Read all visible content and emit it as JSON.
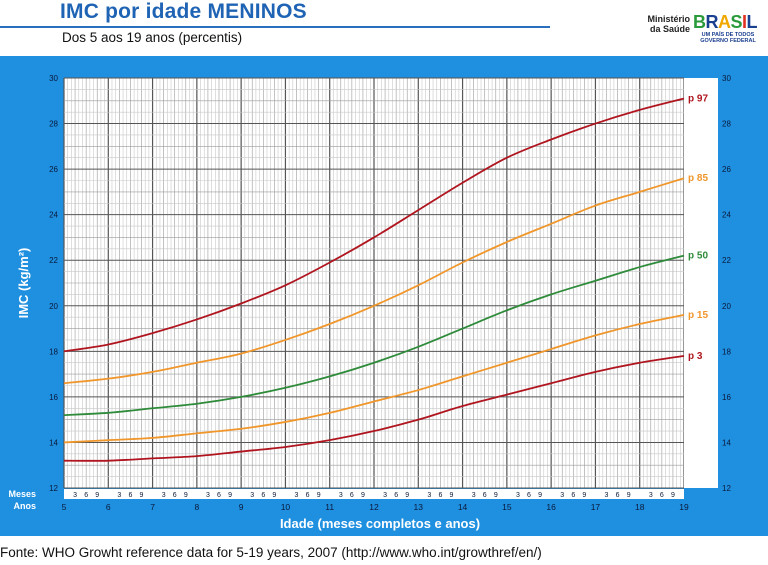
{
  "header": {
    "title": "IMC por idade MENINOS",
    "subtitle": "Dos 5 aos 19 anos (percentis)",
    "ministry_line1": "Ministério",
    "ministry_line2": "da Saúde",
    "logo_word": "BRASIL",
    "logo_tagline": "UM PAÍS DE TODOS",
    "logo_gov": "GOVERNO FEDERAL"
  },
  "footer": {
    "source": "Fonte: WHO Growht reference data for 5-19 years, 2007 (http://www.who.int/growthref/en/)"
  },
  "colors": {
    "panel": "#1f8fe0",
    "title": "#1f64b4",
    "p97": "#b0151f",
    "p85": "#f0962a",
    "p50": "#2e8b3a",
    "p15": "#f0962a",
    "p3": "#b0151f"
  },
  "chart_data": {
    "type": "line",
    "xlabel": "Idade (meses completos e anos)",
    "ylabel": "IMC (kg/m²)",
    "xlim": [
      5,
      19
    ],
    "ylim": [
      12,
      30
    ],
    "x_ticks": [
      "5",
      "6",
      "7",
      "8",
      "9",
      "10",
      "11",
      "12",
      "13",
      "14",
      "15",
      "16",
      "17",
      "18",
      "19"
    ],
    "y_ticks": [
      "12",
      "14",
      "16",
      "18",
      "20",
      "22",
      "24",
      "26",
      "28",
      "30"
    ],
    "month_ticks": [
      "3",
      "6",
      "9"
    ],
    "row_label_months": "Meses",
    "row_label_years": "Anos",
    "grid": true,
    "series": [
      {
        "name": "p 97",
        "x": [
          5,
          6,
          7,
          8,
          9,
          10,
          11,
          12,
          13,
          14,
          15,
          16,
          17,
          18,
          19
        ],
        "values": [
          18.0,
          18.3,
          18.8,
          19.4,
          20.1,
          20.9,
          21.9,
          23.0,
          24.2,
          25.4,
          26.5,
          27.3,
          28.0,
          28.6,
          29.1
        ]
      },
      {
        "name": "p 85",
        "x": [
          5,
          6,
          7,
          8,
          9,
          10,
          11,
          12,
          13,
          14,
          15,
          16,
          17,
          18,
          19
        ],
        "values": [
          16.6,
          16.8,
          17.1,
          17.5,
          17.9,
          18.5,
          19.2,
          20.0,
          20.9,
          21.9,
          22.8,
          23.6,
          24.4,
          25.0,
          25.6
        ]
      },
      {
        "name": "p 50",
        "x": [
          5,
          6,
          7,
          8,
          9,
          10,
          11,
          12,
          13,
          14,
          15,
          16,
          17,
          18,
          19
        ],
        "values": [
          15.2,
          15.3,
          15.5,
          15.7,
          16.0,
          16.4,
          16.9,
          17.5,
          18.2,
          19.0,
          19.8,
          20.5,
          21.1,
          21.7,
          22.2
        ]
      },
      {
        "name": "p 15",
        "x": [
          5,
          6,
          7,
          8,
          9,
          10,
          11,
          12,
          13,
          14,
          15,
          16,
          17,
          18,
          19
        ],
        "values": [
          14.0,
          14.1,
          14.2,
          14.4,
          14.6,
          14.9,
          15.3,
          15.8,
          16.3,
          16.9,
          17.5,
          18.1,
          18.7,
          19.2,
          19.6
        ]
      },
      {
        "name": "p 3",
        "x": [
          5,
          6,
          7,
          8,
          9,
          10,
          11,
          12,
          13,
          14,
          15,
          16,
          17,
          18,
          19
        ],
        "values": [
          13.2,
          13.2,
          13.3,
          13.4,
          13.6,
          13.8,
          14.1,
          14.5,
          15.0,
          15.6,
          16.1,
          16.6,
          17.1,
          17.5,
          17.8
        ]
      }
    ]
  }
}
